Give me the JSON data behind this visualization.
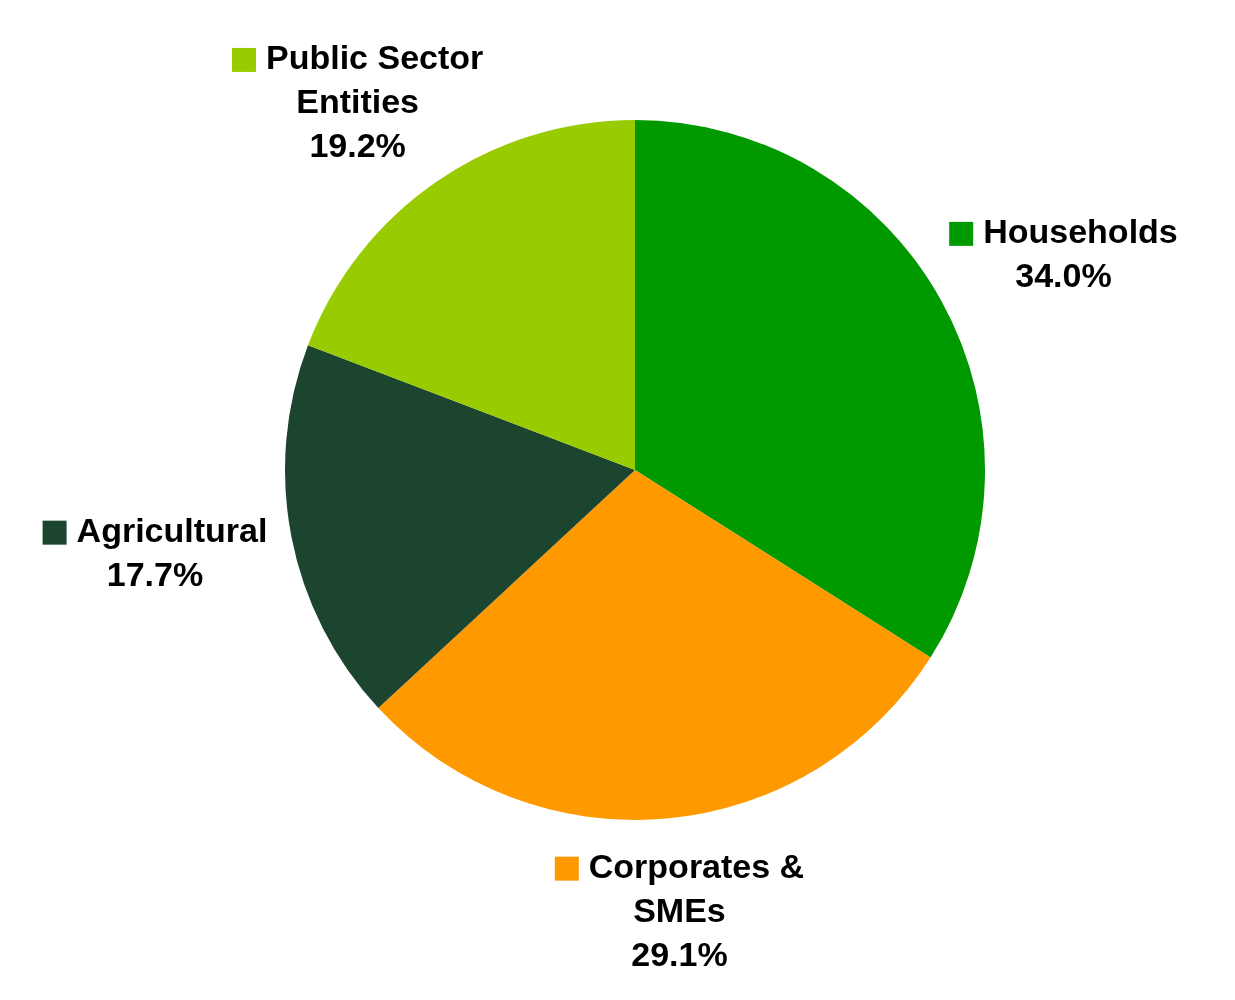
{
  "chart_data": {
    "type": "pie",
    "categories": [
      "Households",
      "Corporates & SMEs",
      "Agricultural",
      "Public Sector Entities"
    ],
    "values": [
      34.0,
      29.1,
      17.7,
      19.2
    ],
    "colors": [
      "#009900",
      "#ff9900",
      "#1c4530",
      "#99cc00"
    ],
    "value_labels": [
      "34.0%",
      "29.1%",
      "17.7%",
      "19.2%"
    ],
    "legend": "bottom left"
  }
}
